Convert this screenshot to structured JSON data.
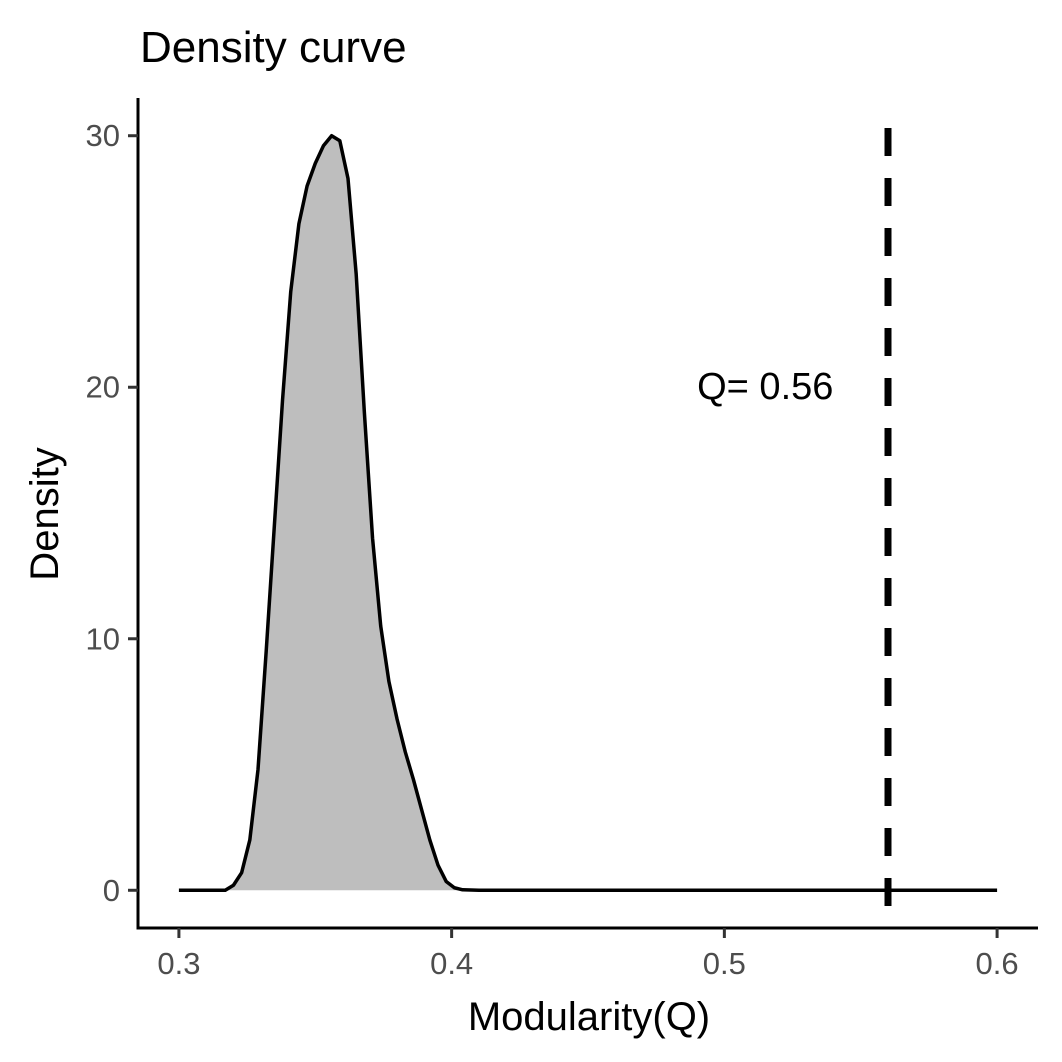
{
  "chart_data": {
    "type": "area",
    "title": "Density curve",
    "xlabel": "Modularity(Q)",
    "ylabel": "Density",
    "xlim": [
      0.285,
      0.615
    ],
    "ylim": [
      -1.5,
      31.5
    ],
    "x_ticks": [
      0.3,
      0.4,
      0.5,
      0.6
    ],
    "x_tick_labels": [
      "0.3",
      "0.4",
      "0.5",
      "0.6"
    ],
    "y_ticks": [
      0,
      10,
      20,
      30
    ],
    "y_tick_labels": [
      "0",
      "10",
      "20",
      "30"
    ],
    "grid": false,
    "legend": "none",
    "fill_color": "#bebebe",
    "line_color": "#000000",
    "series": [
      {
        "x": [
          0.3,
          0.31,
          0.317,
          0.32,
          0.323,
          0.326,
          0.329,
          0.332,
          0.335,
          0.338,
          0.341,
          0.344,
          0.347,
          0.35,
          0.353,
          0.356,
          0.359,
          0.362,
          0.365,
          0.368,
          0.371,
          0.374,
          0.377,
          0.38,
          0.383,
          0.386,
          0.389,
          0.392,
          0.395,
          0.398,
          0.401,
          0.404,
          0.41,
          0.45,
          0.5,
          0.55,
          0.6
        ],
        "y": [
          0,
          0,
          0,
          0.2,
          0.7,
          2.0,
          4.8,
          9.5,
          14.5,
          19.5,
          23.8,
          26.5,
          28.0,
          28.9,
          29.6,
          30.0,
          29.8,
          28.3,
          24.5,
          19.0,
          14.0,
          10.5,
          8.3,
          6.8,
          5.5,
          4.4,
          3.2,
          2.0,
          1.0,
          0.35,
          0.1,
          0.02,
          0,
          0,
          0,
          0,
          0
        ]
      }
    ],
    "reference_line": {
      "x": 0.56,
      "style": "dashed",
      "color": "#000000"
    },
    "annotation": {
      "text": "Q= 0.56",
      "x": 0.515,
      "y": 20
    }
  }
}
